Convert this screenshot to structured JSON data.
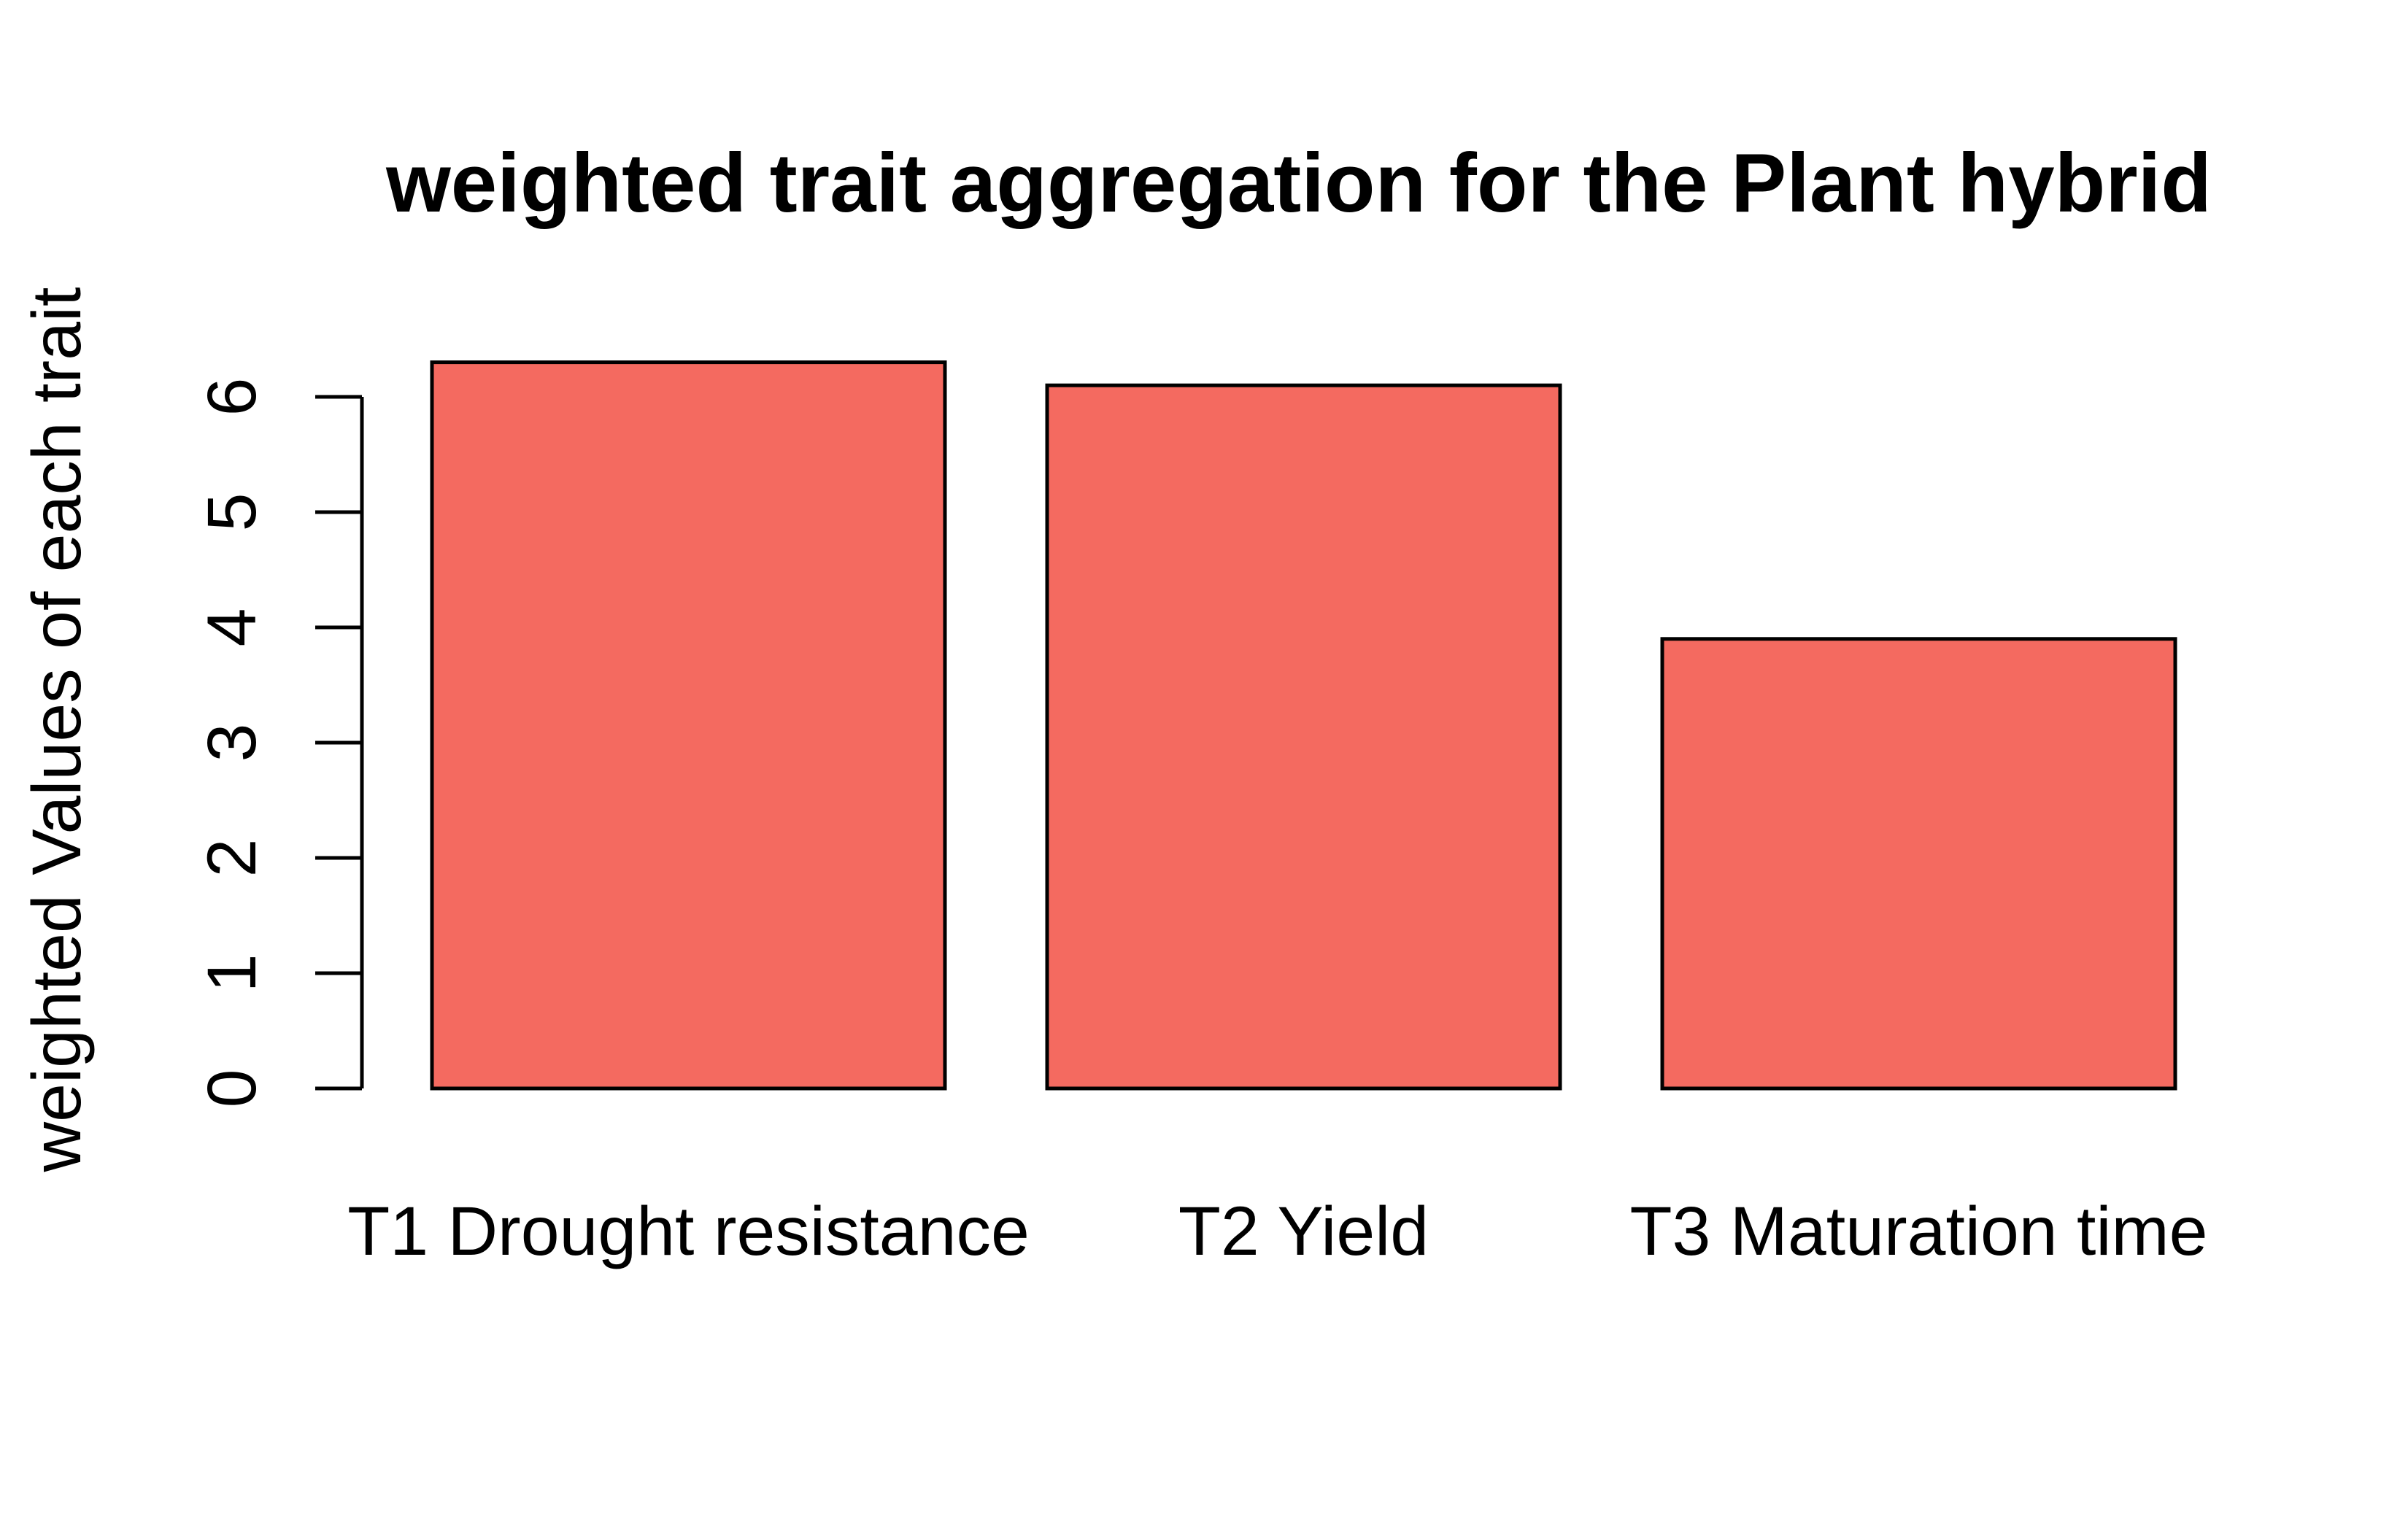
{
  "chart_data": {
    "type": "bar",
    "title": "weighted trait aggregation for the Plant hybrid",
    "xlabel": "",
    "ylabel": "weighted Values of each trait",
    "categories": [
      "T1 Drought resistance",
      "T2 Yield",
      "T3 Maturation time"
    ],
    "values": [
      6.3,
      6.1,
      3.9
    ],
    "yticks": [
      0,
      1,
      2,
      3,
      4,
      5,
      6
    ],
    "ylim": [
      0,
      6.3
    ],
    "grid": false,
    "legend": "none",
    "bar_color": "#F46A60",
    "border_color": "#000000"
  }
}
